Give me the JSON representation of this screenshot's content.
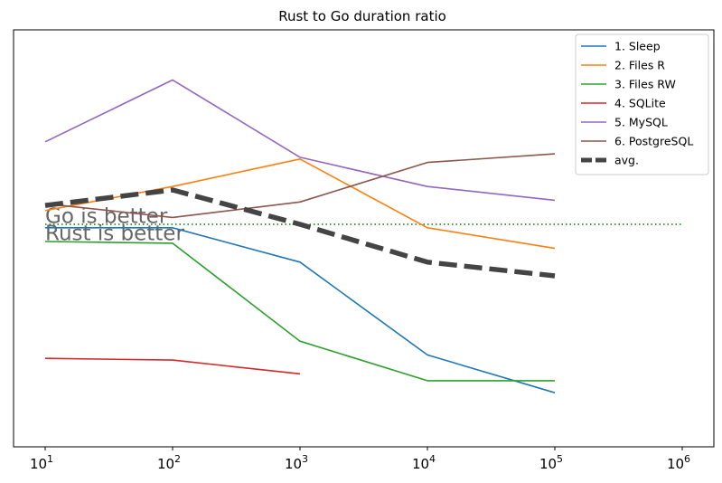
{
  "chart_data": {
    "type": "line",
    "title": "Rust to Go duration ratio",
    "xlabel": "",
    "ylabel": "",
    "x_scale": "log",
    "xlim": [
      10,
      1000000
    ],
    "x_ticks": [
      10,
      100,
      1000,
      10000,
      100000,
      1000000
    ],
    "x_tick_labels": [
      {
        "base": "10",
        "exp": "1"
      },
      {
        "base": "10",
        "exp": "2"
      },
      {
        "base": "10",
        "exp": "3"
      },
      {
        "base": "10",
        "exp": "4"
      },
      {
        "base": "10",
        "exp": "5"
      },
      {
        "base": "10",
        "exp": "6"
      }
    ],
    "y_ticks_shown": false,
    "ylim": [
      -0.435,
      0.575
    ],
    "grid": false,
    "legend_position": "top-right",
    "reference_line": {
      "y": 0,
      "color": "#008000",
      "style": "dotted"
    },
    "annotations": [
      {
        "text": "Go is better",
        "x": 10,
        "y": 0.025
      },
      {
        "text": "Rust is better",
        "x": 10,
        "y": -0.025
      }
    ],
    "series": [
      {
        "name": "1. Sleep",
        "color": "#1f77b4",
        "style": "solid",
        "x": [
          10,
          100,
          1000,
          10000,
          100000
        ],
        "y": [
          -0.01,
          -0.01,
          -0.11,
          -0.38,
          -0.49
        ]
      },
      {
        "name": "2. Files R",
        "color": "#ff7f0e",
        "style": "solid",
        "x": [
          10,
          100,
          1000,
          10000,
          100000
        ],
        "y": [
          0.04,
          0.11,
          0.19,
          -0.01,
          -0.07
        ]
      },
      {
        "name": "3. Files RW",
        "color": "#2ca02c",
        "style": "solid",
        "x": [
          10,
          100,
          1000,
          10000,
          100000
        ],
        "y": [
          -0.05,
          -0.055,
          -0.34,
          -0.455,
          -0.455
        ]
      },
      {
        "name": "4. SQLite",
        "color": "#d62728",
        "style": "solid",
        "x": [
          10,
          100,
          1000
        ],
        "y": [
          -0.39,
          -0.395,
          -0.435
        ]
      },
      {
        "name": "5. MySQL",
        "color": "#9467bd",
        "style": "solid",
        "x": [
          10,
          100,
          1000,
          10000,
          100000
        ],
        "y": [
          0.24,
          0.42,
          0.195,
          0.11,
          0.07
        ]
      },
      {
        "name": "6. PostgreSQL",
        "color": "#8c564b",
        "style": "solid",
        "x": [
          10,
          100,
          1000,
          10000,
          100000
        ],
        "y": [
          0.06,
          0.02,
          0.065,
          0.18,
          0.205
        ]
      },
      {
        "name": "avg.",
        "color": "#444444",
        "style": "thick-dashed",
        "x": [
          10,
          100,
          1000,
          10000,
          100000
        ],
        "y": [
          0.055,
          0.1,
          0.0,
          -0.11,
          -0.15
        ]
      }
    ]
  }
}
